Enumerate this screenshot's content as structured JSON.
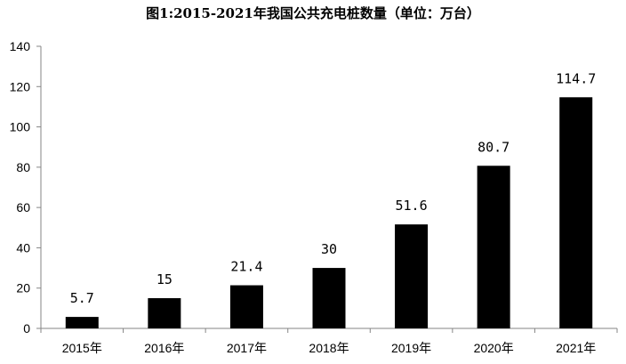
{
  "chart_data": {
    "type": "bar",
    "title": "图1:2015-2021年我国公共充电桩数量（单位：万台）",
    "categories": [
      "2015年",
      "2016年",
      "2017年",
      "2018年",
      "2019年",
      "2020年",
      "2021年"
    ],
    "values": [
      5.7,
      15,
      21.4,
      30,
      51.6,
      80.7,
      114.7
    ],
    "data_labels": [
      "5.7",
      "15",
      "21.4",
      "30",
      "51.6",
      "80.7",
      "114.7"
    ],
    "y_ticks": [
      "0",
      "20",
      "40",
      "60",
      "80",
      "100",
      "120",
      "140"
    ],
    "ylim": [
      0,
      140
    ],
    "grid": false,
    "legend": "none",
    "bar_color": "#000000",
    "axis_color": "#868686"
  }
}
